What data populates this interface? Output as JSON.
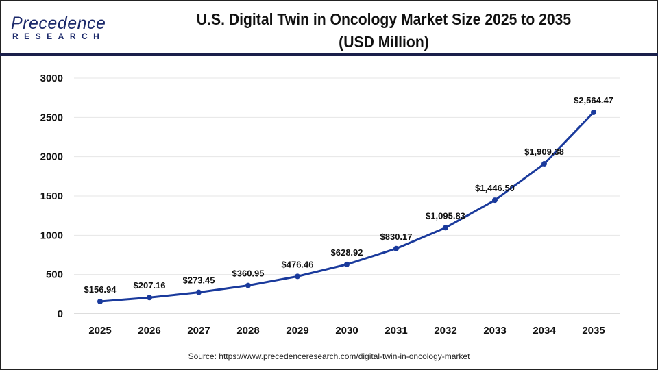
{
  "logo": {
    "main": "Precedence",
    "sub": "RESEARCH"
  },
  "chart_data": {
    "type": "line",
    "title": "U.S. Digital Twin in Oncology Market Size 2025 to 2035 (USD Million)",
    "title_lines": [
      "U.S. Digital Twin in Oncology Market Size 2025 to 2035",
      "(USD Million)"
    ],
    "categories": [
      "2025",
      "2026",
      "2027",
      "2028",
      "2029",
      "2030",
      "2031",
      "2032",
      "2033",
      "2034",
      "2035"
    ],
    "values": [
      156.94,
      207.16,
      273.45,
      360.95,
      476.46,
      628.92,
      830.17,
      1095.83,
      1446.5,
      1909.38,
      2564.47
    ],
    "data_labels": [
      "$156.94",
      "$207.16",
      "$273.45",
      "$360.95",
      "$476.46",
      "$628.92",
      "$830.17",
      "$1,095.83",
      "$1,446.50",
      "$1,909.38",
      "$2,564.47"
    ],
    "yticks": [
      "0",
      "500",
      "1000",
      "1500",
      "2000",
      "2500",
      "3000"
    ],
    "ylim": [
      0,
      3000
    ],
    "xlabel": "",
    "ylabel": "",
    "grid": true,
    "legend": "none",
    "line_color": "#1a3a9c"
  },
  "source": "Source: https://www.precedenceresearch.com/digital-twin-in-oncology-market"
}
